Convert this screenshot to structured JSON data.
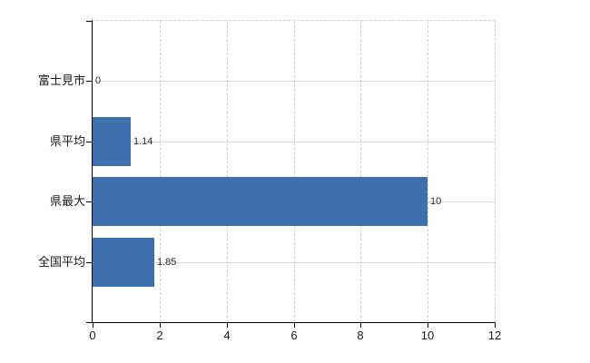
{
  "chart_data": {
    "type": "bar",
    "orientation": "horizontal",
    "title": "",
    "categories": [
      "富士見市",
      "県平均",
      "県最大",
      "全国平均"
    ],
    "values": [
      0,
      1.14,
      10,
      1.85
    ],
    "data_labels": [
      "0",
      "1.14",
      "10",
      "1.85"
    ],
    "x_ticks": [
      0,
      2,
      4,
      6,
      8,
      10,
      12
    ],
    "x_tick_labels": [
      "0",
      "2",
      "4",
      "6",
      "8",
      "10",
      "12"
    ],
    "xlim": [
      0,
      12
    ],
    "grid": "on",
    "legend": "none",
    "colors": {
      "bar": "#3e6fae",
      "h_gridline": "#d3ddd3",
      "v_gridline": "#cfcfcf",
      "axis": "#000000",
      "text": "#1a1a1a"
    }
  }
}
